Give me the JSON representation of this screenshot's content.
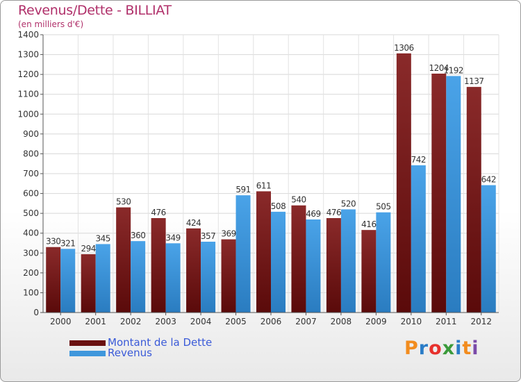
{
  "header": {
    "title": "Revenus/Dette - BILLIAT",
    "subtitle": "(en milliers d'€)"
  },
  "brand": {
    "text": "Proxiti",
    "letters": [
      "P",
      "r",
      "o",
      "x",
      "i",
      "t",
      "i"
    ],
    "colors": [
      "#f28c1e",
      "#2a7cc7",
      "#e7312d",
      "#3a9a3a",
      "#2a7cc7",
      "#f28c1e",
      "#7a4aa8"
    ]
  },
  "chart_data": {
    "type": "bar",
    "title": "Revenus/Dette - BILLIAT",
    "subtitle": "(en milliers d'€)",
    "categories": [
      "2000",
      "2001",
      "2002",
      "2003",
      "2004",
      "2005",
      "2006",
      "2007",
      "2008",
      "2009",
      "2010",
      "2011",
      "2012"
    ],
    "series": [
      {
        "name": "Montant de la Dette",
        "color": "#7a1e1e",
        "values": [
          330,
          294,
          530,
          476,
          424,
          369,
          611,
          540,
          476,
          416,
          1306,
          1204,
          1137
        ]
      },
      {
        "name": "Revenus",
        "color": "#3f97dc",
        "values": [
          321,
          345,
          360,
          349,
          357,
          591,
          508,
          469,
          520,
          505,
          742,
          1192,
          642
        ]
      }
    ],
    "ylim": [
      0,
      1400
    ],
    "ytick_step": 100,
    "grid": true,
    "legend": "bottom-left"
  }
}
